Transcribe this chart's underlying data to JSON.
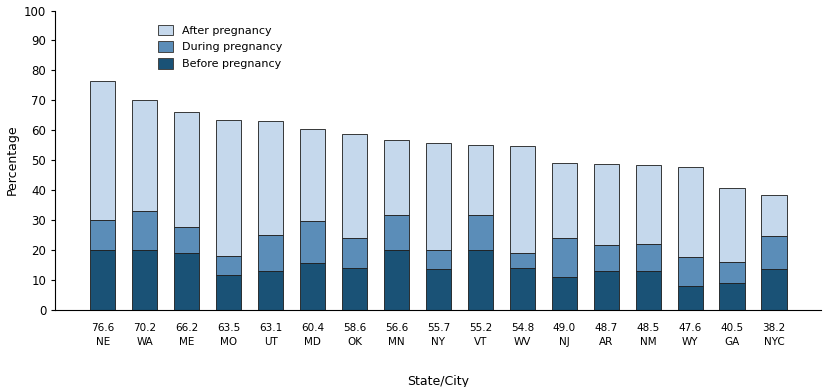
{
  "states": [
    "NE",
    "WA",
    "ME",
    "MO",
    "UT",
    "MD",
    "OK",
    "MN",
    "NY",
    "VT",
    "WV",
    "NJ",
    "AR",
    "NM",
    "WY",
    "GA",
    "NYC"
  ],
  "totals": [
    76.6,
    70.2,
    66.2,
    63.5,
    63.1,
    60.4,
    58.6,
    56.6,
    55.7,
    55.2,
    54.8,
    49.0,
    48.7,
    48.5,
    47.6,
    40.5,
    38.2
  ],
  "before": [
    20.0,
    20.0,
    19.0,
    11.5,
    13.0,
    15.5,
    14.0,
    20.0,
    13.5,
    20.0,
    14.0,
    11.0,
    13.0,
    13.0,
    8.0,
    9.0,
    13.5
  ],
  "during": [
    10.0,
    13.0,
    8.5,
    6.5,
    12.0,
    14.0,
    10.0,
    11.5,
    6.5,
    11.5,
    5.0,
    13.0,
    8.5,
    9.0,
    9.5,
    7.0,
    11.0
  ],
  "color_before": "#1a5276",
  "color_during": "#5b8db8",
  "color_after": "#c5d8ec",
  "bar_edge_color": "#1a1a1a",
  "bar_width": 0.6,
  "ylim": [
    0,
    100
  ],
  "yticks": [
    0,
    10,
    20,
    30,
    40,
    50,
    60,
    70,
    80,
    90,
    100
  ],
  "ylabel": "Percentage",
  "xlabel": "State/City",
  "legend_labels": [
    "After pregnancy",
    "During pregnancy",
    "Before pregnancy"
  ],
  "legend_colors": [
    "#c5d8ec",
    "#5b8db8",
    "#1a5276"
  ]
}
